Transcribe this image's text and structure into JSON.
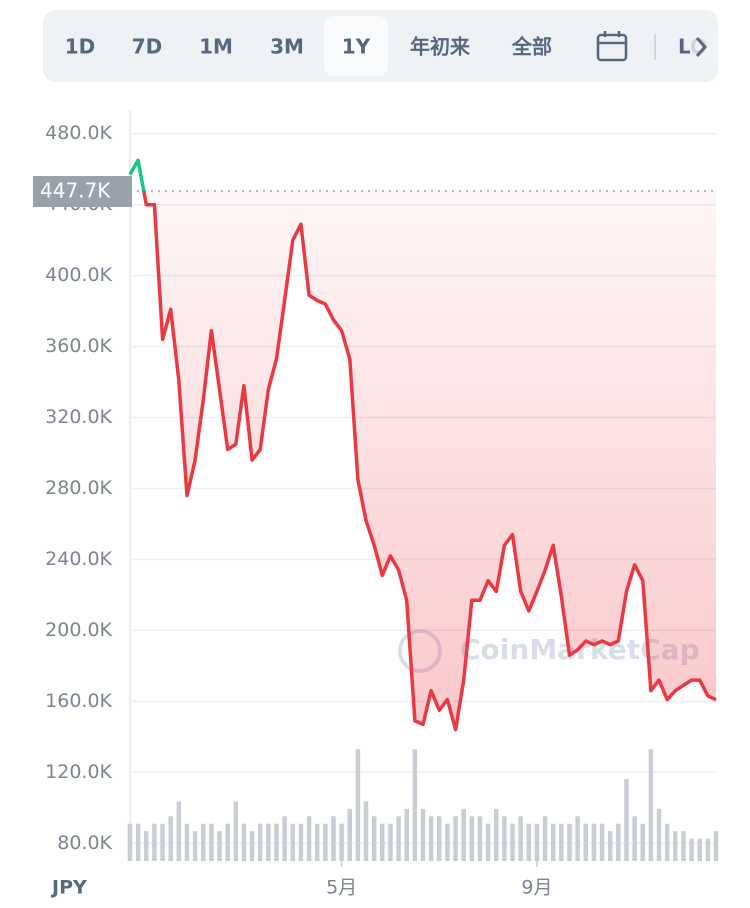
{
  "toolbar": {
    "buttons": [
      "1D",
      "7D",
      "1M",
      "3M",
      "1Y",
      "年初来",
      "全部"
    ],
    "selected_index": 4,
    "log_button": "LO"
  },
  "chart_data": {
    "type": "line",
    "currency": "JPY",
    "watermark": "CoinMarketCap",
    "categories": [
      null,
      null,
      null,
      null,
      null,
      null,
      null,
      null,
      null,
      null,
      null,
      null,
      null,
      null,
      null,
      null,
      null,
      null,
      null,
      null,
      null,
      null,
      null,
      null,
      null,
      null,
      "5月",
      null,
      null,
      null,
      null,
      null,
      null,
      null,
      null,
      null,
      null,
      null,
      null,
      null,
      null,
      null,
      null,
      null,
      null,
      null,
      null,
      null,
      null,
      null,
      "9月",
      null,
      null,
      null,
      null,
      null,
      null,
      null,
      null,
      null,
      null,
      null,
      null,
      null,
      null,
      null,
      null,
      null,
      null,
      null,
      null,
      null,
      null
    ],
    "values": [
      457000,
      465000,
      440000,
      440000,
      364000,
      381000,
      341000,
      276000,
      296000,
      330000,
      369000,
      336000,
      302000,
      305000,
      338000,
      296000,
      302000,
      336000,
      353000,
      386000,
      420000,
      429000,
      389000,
      386000,
      384000,
      375000,
      369000,
      353000,
      285000,
      262000,
      248000,
      231000,
      242000,
      234000,
      217000,
      149000,
      147000,
      166000,
      155000,
      161000,
      144000,
      172000,
      217000,
      217000,
      228000,
      222000,
      248000,
      254000,
      222000,
      211000,
      222000,
      234000,
      248000,
      219000,
      186000,
      189000,
      194000,
      192000,
      194000,
      192000,
      194000,
      222000,
      237000,
      228000,
      166000,
      172000,
      161000,
      166000,
      169000,
      172000,
      172000,
      163000,
      161000
    ],
    "color_above": "#16c784",
    "color_below": "#ea3943",
    "reference": {
      "value": 447700,
      "label": "447.7K"
    },
    "volume": {
      "axis": "y2",
      "color": "#c8cdd6",
      "values": [
        5,
        5,
        4,
        5,
        5,
        6,
        8,
        5,
        4,
        5,
        5,
        4,
        5,
        8,
        5,
        4,
        5,
        5,
        5,
        6,
        5,
        5,
        6,
        5,
        5,
        6,
        5,
        7,
        15,
        8,
        6,
        5,
        5,
        6,
        7,
        15,
        7,
        6,
        6,
        5,
        6,
        7,
        6,
        6,
        5,
        7,
        6,
        5,
        6,
        5,
        5,
        6,
        5,
        5,
        5,
        6,
        5,
        5,
        5,
        4,
        5,
        11,
        6,
        5,
        15,
        7,
        5,
        4,
        4,
        3,
        3,
        3,
        4
      ]
    },
    "ylim": [
      70000,
      490000
    ],
    "yticks": [
      {
        "value": 80000,
        "label": "80.0K"
      },
      {
        "value": 120000,
        "label": "120.0K"
      },
      {
        "value": 160000,
        "label": "160.0K"
      },
      {
        "value": 200000,
        "label": "200.0K"
      },
      {
        "value": 240000,
        "label": "240.0K"
      },
      {
        "value": 280000,
        "label": "280.0K"
      },
      {
        "value": 320000,
        "label": "320.0K"
      },
      {
        "value": 360000,
        "label": "360.0K"
      },
      {
        "value": 400000,
        "label": "400.0K"
      },
      {
        "value": 440000,
        "label": "440.0K"
      },
      {
        "value": 480000,
        "label": "480.0K"
      }
    ],
    "y2lim": [
      0,
      100
    ],
    "grid": true
  }
}
